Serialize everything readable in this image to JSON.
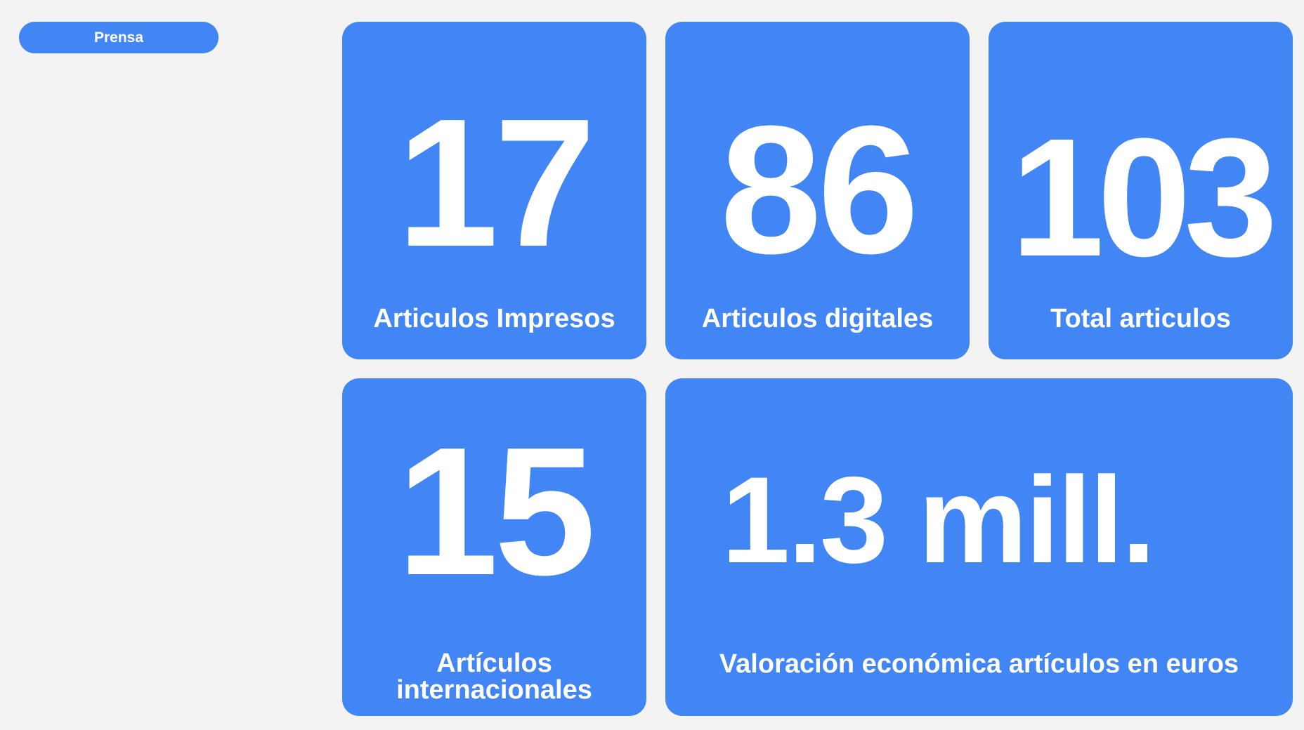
{
  "tab": {
    "label": "Prensa"
  },
  "cards": {
    "impresos": {
      "value": "17",
      "label": "Articulos Impresos"
    },
    "digitales": {
      "value": "86",
      "label": "Articulos digitales"
    },
    "total": {
      "value": "103",
      "label": "Total articulos"
    },
    "internacionales": {
      "value": "15",
      "label": "Artículos internacionales"
    },
    "valoracion": {
      "value": "1.3 mill.",
      "label": "Valoración económica artículos en euros"
    }
  },
  "colors": {
    "background": "#f3f3f3",
    "accent": "#4285f4",
    "text": "#ffffff"
  }
}
